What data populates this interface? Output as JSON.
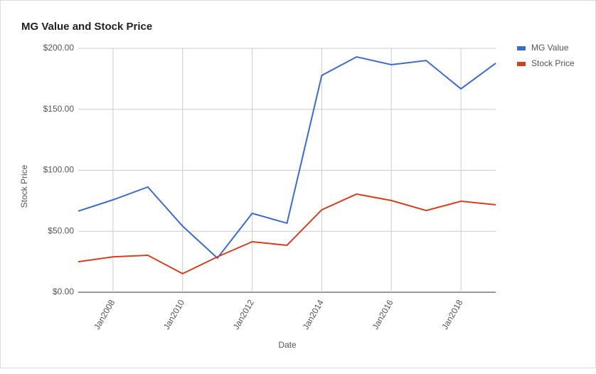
{
  "chart_data": {
    "type": "line",
    "title": "MG Value and Stock Price",
    "x_label": "Date",
    "y_label": "Stock Price",
    "x": [
      2007,
      2008,
      2009,
      2010,
      2011,
      2012,
      2013,
      2014,
      2015,
      2016,
      2017,
      2018,
      2019
    ],
    "xlim": [
      2007,
      2019
    ],
    "xticks": [
      {
        "value": 2008,
        "label": "Jan2008"
      },
      {
        "value": 2010,
        "label": "Jan2010"
      },
      {
        "value": 2012,
        "label": "Jan2012"
      },
      {
        "value": 2014,
        "label": "Jan2014"
      },
      {
        "value": 2016,
        "label": "Jan2016"
      },
      {
        "value": 2018,
        "label": "Jan2018"
      }
    ],
    "ylim": [
      0,
      200
    ],
    "yticks": [
      {
        "value": 0,
        "label": "$0.00"
      },
      {
        "value": 50,
        "label": "$50.00"
      },
      {
        "value": 100,
        "label": "$100.00"
      },
      {
        "value": 150,
        "label": "$150.00"
      },
      {
        "value": 200,
        "label": "$200.00"
      }
    ],
    "grid": true,
    "legend": "right",
    "series": [
      {
        "name": "MG Value",
        "color": "#3c6bcc",
        "values": [
          66.5,
          75.8,
          86.3,
          54.2,
          28,
          64.7,
          56.6,
          177.8,
          193,
          186.6,
          190,
          166.8,
          187.8
        ]
      },
      {
        "name": "Stock Price",
        "color": "#d2401f",
        "values": [
          25,
          29,
          30.3,
          15.2,
          29,
          41.4,
          38.5,
          67.6,
          80.5,
          75.2,
          67,
          74.6,
          71.7
        ]
      }
    ]
  }
}
